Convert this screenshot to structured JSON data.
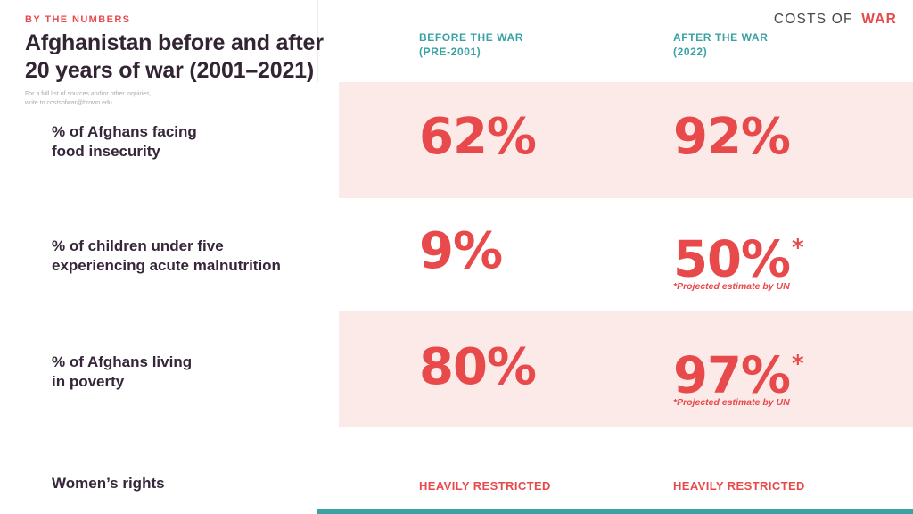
{
  "header": {
    "eyebrow": "BY THE NUMBERS",
    "title_line1": "Afghanistan before and after",
    "title_line2": "20 years of war (2001–2021)",
    "note_line1": "For a full list of sources and/or other inquiries,",
    "note_line2": "write to costsofwar@brown.edu.",
    "logo_prefix": "COSTS OF",
    "logo_suffix": "WAR"
  },
  "columns": {
    "before_line1": "BEFORE THE WAR",
    "before_line2": "(PRE-2001)",
    "after_line1": "AFTER THE WAR",
    "after_line2": "(2022)"
  },
  "rows": [
    {
      "label_line1": "% of Afghans facing",
      "label_line2": "food insecurity",
      "before": "62%",
      "after": "92%",
      "after_sup": "",
      "footnote": ""
    },
    {
      "label_line1": "% of children under five",
      "label_line2": "experiencing acute malnutrition",
      "before": "9%",
      "after": "50%",
      "after_sup": "*",
      "footnote": "*Projected estimate by UN"
    },
    {
      "label_line1": "% of Afghans living",
      "label_line2": "in poverty",
      "before": "80%",
      "after": "97%",
      "after_sup": "*",
      "footnote": "*Projected estimate by UN"
    },
    {
      "label_line1": "Women’s rights",
      "label_line2": "",
      "before": "HEAVILY RESTRICTED",
      "after": "HEAVILY RESTRICTED",
      "after_sup": "",
      "footnote": ""
    }
  ],
  "colors": {
    "accent_red": "#E8494B",
    "teal": "#3BA2A4",
    "pink_band": "#FBEAE7",
    "dark_text": "#322433",
    "logo_dark": "#47474B",
    "note_gray": "#ABABAB"
  },
  "chart_data": {
    "type": "table",
    "title": "Afghanistan before and after 20 years of war (2001–2021)",
    "columns": [
      "BEFORE THE WAR (PRE-2001)",
      "AFTER THE WAR (2022)"
    ],
    "rows": [
      {
        "label": "% of Afghans facing food insecurity",
        "before": "62%",
        "after": "92%"
      },
      {
        "label": "% of children under five experiencing acute malnutrition",
        "before": "9%",
        "after": "50%",
        "after_note": "*Projected estimate by UN"
      },
      {
        "label": "% of Afghans living in poverty",
        "before": "80%",
        "after": "97%",
        "after_note": "*Projected estimate by UN"
      },
      {
        "label": "Women’s rights",
        "before": "HEAVILY RESTRICTED",
        "after": "HEAVILY RESTRICTED"
      }
    ],
    "layout": "two-column comparison table, shaded pink bands on rows 1 and 3, values in red, headers in teal"
  }
}
